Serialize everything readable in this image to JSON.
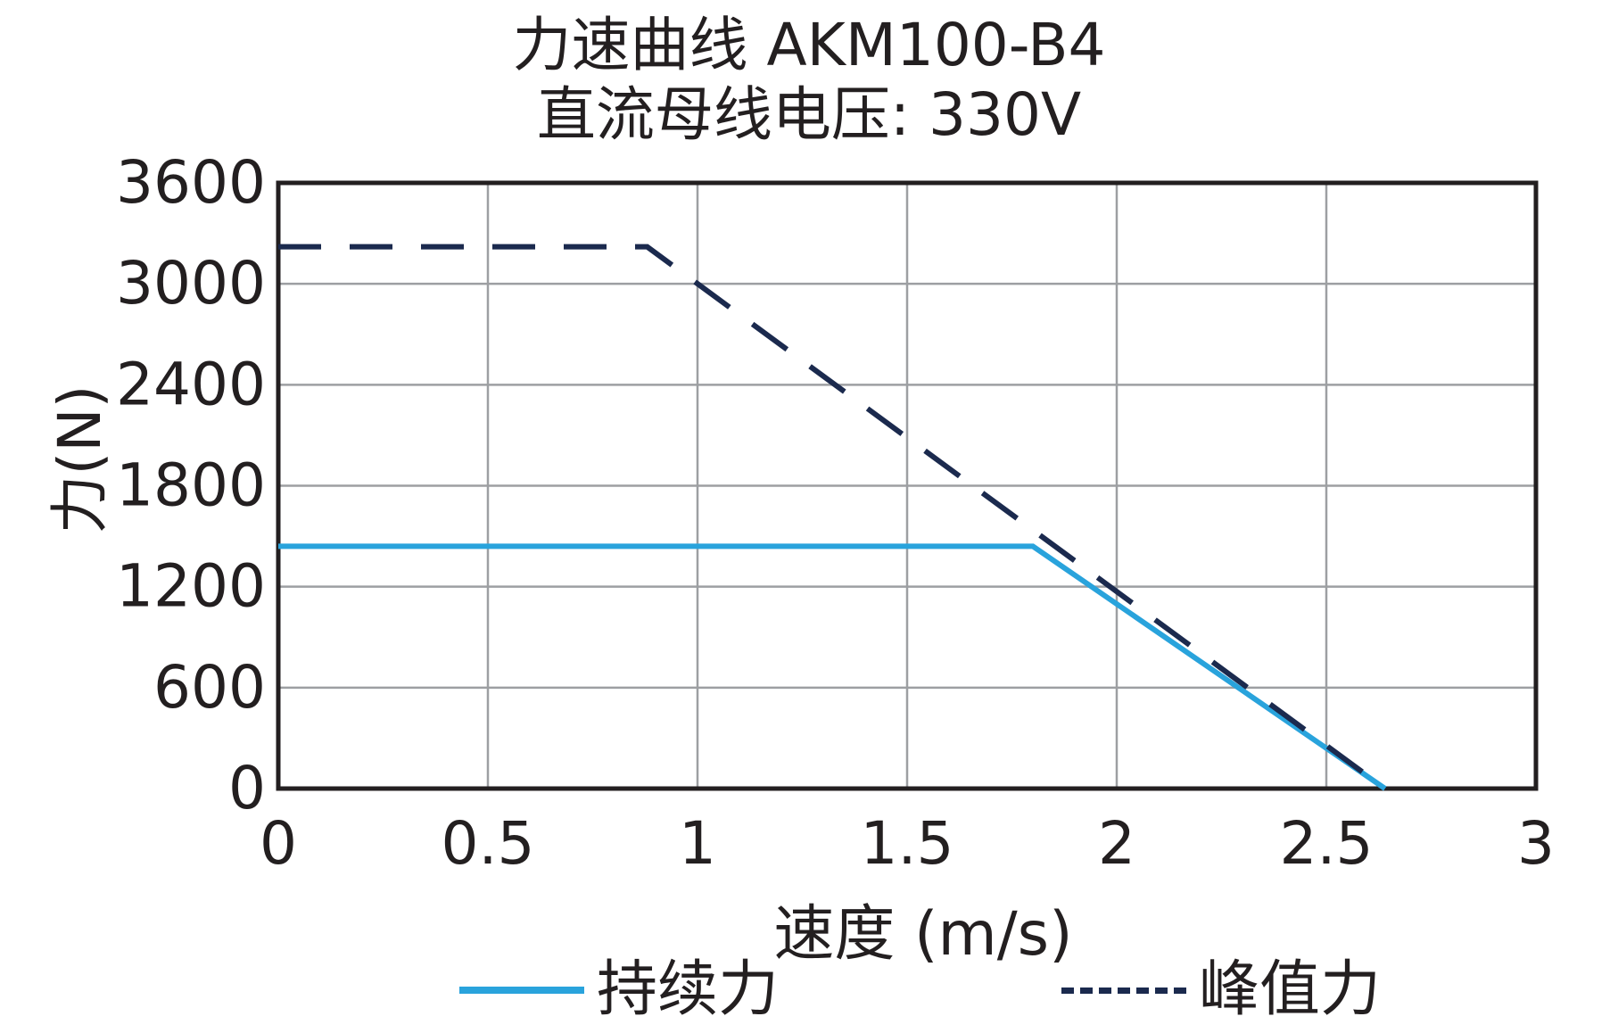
{
  "chart_data": {
    "type": "line",
    "title": "力速曲线 AKM100-B4",
    "subtitle": "直流母线电压: 330V",
    "xlabel": "速度 (m/s)",
    "ylabel": "力(N)",
    "xlim": [
      0,
      3
    ],
    "ylim": [
      0,
      3600
    ],
    "xticks": [
      0,
      0.5,
      1,
      1.5,
      2,
      2.5,
      3
    ],
    "xtick_labels": [
      "0",
      "0.5",
      "1",
      "1.5",
      "2",
      "2.5",
      "3"
    ],
    "yticks": [
      0,
      600,
      1200,
      1800,
      2400,
      3000,
      3600
    ],
    "ytick_labels": [
      "0",
      "600",
      "1200",
      "1800",
      "2400",
      "3000",
      "3600"
    ],
    "grid": true,
    "legend_position": "bottom",
    "series": [
      {
        "name": "持续力",
        "color": "#29a3dc",
        "style": "solid",
        "x": [
          0,
          1.8,
          2.64
        ],
        "y": [
          1440,
          1440,
          0
        ]
      },
      {
        "name": "峰值力",
        "color": "#1b2a4e",
        "style": "dashed",
        "x": [
          0,
          0.88,
          2.64
        ],
        "y": [
          3220,
          3220,
          0
        ]
      }
    ]
  }
}
